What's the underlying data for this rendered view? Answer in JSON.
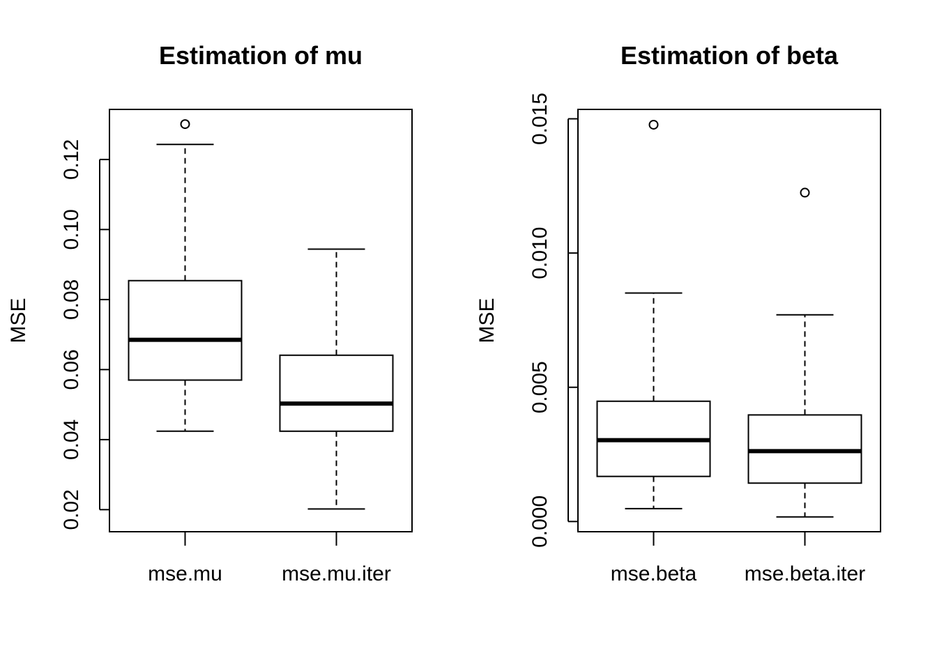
{
  "chart_data": [
    {
      "type": "boxplot",
      "title": "Estimation of mu",
      "xlabel": "",
      "ylabel": "MSE",
      "ylim": [
        0.0137,
        0.1343
      ],
      "yticks": [
        0.02,
        0.04,
        0.06,
        0.08,
        0.1,
        0.12
      ],
      "ytick_labels": [
        "0.02",
        "0.04",
        "0.06",
        "0.08",
        "0.10",
        "0.12"
      ],
      "categories": [
        "mse.mu",
        "mse.mu.iter"
      ],
      "boxes": [
        {
          "name": "mse.mu",
          "whisker_low": 0.0424,
          "q1": 0.057,
          "median": 0.0685,
          "q3": 0.0854,
          "whisker_high": 0.1243,
          "outliers": [
            0.1301
          ]
        },
        {
          "name": "mse.mu.iter",
          "whisker_low": 0.0202,
          "q1": 0.0424,
          "median": 0.0503,
          "q3": 0.0641,
          "whisker_high": 0.0944,
          "outliers": []
        }
      ],
      "grid": false,
      "legend": "none"
    },
    {
      "type": "boxplot",
      "title": "Estimation of beta",
      "xlabel": "",
      "ylabel": "MSE",
      "ylim": [
        -0.00038,
        0.01535
      ],
      "yticks": [
        0.0,
        0.005,
        0.01,
        0.015
      ],
      "ytick_labels": [
        "0.000",
        "0.005",
        "0.010",
        "0.015"
      ],
      "categories": [
        "mse.beta",
        "mse.beta.iter"
      ],
      "boxes": [
        {
          "name": "mse.beta",
          "whisker_low": 0.00048,
          "q1": 0.00168,
          "median": 0.00303,
          "q3": 0.00448,
          "whisker_high": 0.00851,
          "outliers": [
            0.01478
          ]
        },
        {
          "name": "mse.beta.iter",
          "whisker_low": 0.00017,
          "q1": 0.00143,
          "median": 0.00262,
          "q3": 0.00397,
          "whisker_high": 0.0077,
          "outliers": [
            0.01225
          ]
        }
      ],
      "grid": false,
      "legend": "none"
    }
  ]
}
